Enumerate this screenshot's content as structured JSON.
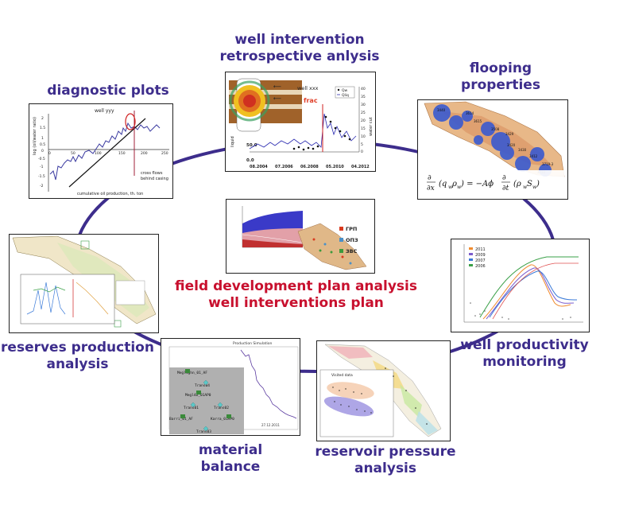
{
  "nodes": {
    "well_intervention_retro": {
      "line1": "well intervention",
      "line2": "retrospective anlysis"
    },
    "diagnostic_plots": {
      "line1": "diagnostic plots"
    },
    "flooping_properties": {
      "line1": "flooping",
      "line2": "properties"
    },
    "reserves_production": {
      "line1": "reserves production",
      "line2": "analysis"
    },
    "well_productivity": {
      "line1": "well productivity",
      "line2": "monitoring"
    },
    "material_balance": {
      "line1": "material",
      "line2": "balance"
    },
    "reservoir_pressure": {
      "line1": "reservoir pressure",
      "line2": "analysis"
    }
  },
  "center": {
    "line1": "field development plan analysis",
    "line2": "well interventions plan"
  },
  "panels": {
    "diagnostic": {
      "title": "well yyy",
      "ylabel": "log (oil/water ratio)",
      "xlabel": "cumulative oil production,  th. ton",
      "annotation_1": "cross flows",
      "annotation_2": "behind casing",
      "x_ticks": [
        "0",
        "50",
        "100",
        "150",
        "200",
        "250"
      ],
      "y_ticks": [
        "2",
        "1.5",
        "1",
        "0.5",
        "0",
        "-0.5",
        "-1",
        "-1.5",
        "-2"
      ]
    },
    "retro": {
      "well_label": "well xxx",
      "frac_label": "frac",
      "legend_1": "Qw",
      "legend_2": "Qliq",
      "ylabel_left": "liquid",
      "ylabel_right": "water cut",
      "y_left_tick": "50.0",
      "y_left_zero": "0.0",
      "x_ticks": [
        "08.2004",
        "07.2006",
        "06.2008",
        "05.2010",
        "04.2012"
      ],
      "y_right_ticks": [
        "40",
        "35",
        "30",
        "25",
        "20",
        "15",
        "10",
        "5",
        "0"
      ]
    },
    "flooping": {
      "well_ids": [
        "3440",
        "3614",
        "3615",
        "3508",
        "3429",
        "3420",
        "3430",
        "3412",
        "3719-3",
        "3722"
      ]
    },
    "field_plan": {
      "legend": [
        "ГРП",
        "ОПЗ",
        "ЗВС"
      ],
      "legend_colors": [
        "#d93a1f",
        "#4a90c8",
        "#3c9a3c"
      ]
    },
    "productivity": {
      "legend": [
        "2011",
        "2009",
        "2007",
        "2006"
      ],
      "legend_colors": [
        "#f08c30",
        "#7c5ccc",
        "#3a7ad8",
        "#3aa048"
      ]
    },
    "material": {
      "title": "Production Simulation",
      "nodes": [
        "Meglighn_01_AF",
        "Trans04",
        "Megl4b_01AP0",
        "Trans01",
        "Trans02",
        "Barri_01_AF",
        "Karra_01AP0",
        "Trans03"
      ],
      "date_label": "27.12.2011"
    },
    "pressure": {
      "inner_title": "Visited data"
    }
  }
}
